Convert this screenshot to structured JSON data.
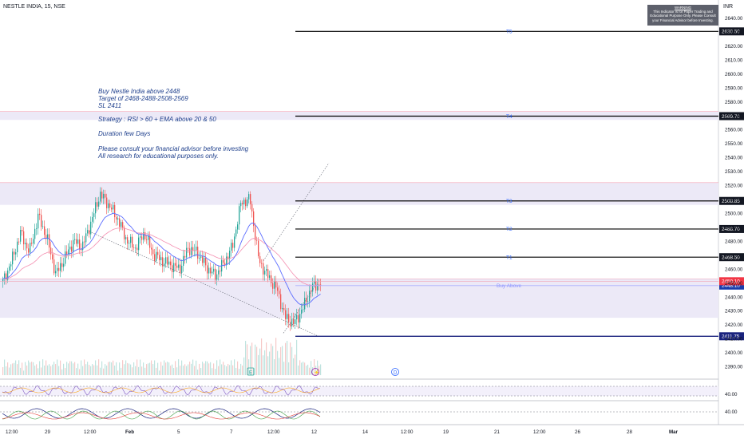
{
  "header": {
    "symbol": "NESTLE INDIA, 15, NSE",
    "currency": "INR"
  },
  "warning": {
    "title": "WARNING",
    "lines": [
      "This Indicator is for Paper Trading and",
      "Educational Purpose Only. Please Consult",
      "your Financial Advisor before Investing."
    ]
  },
  "notes": {
    "line1": "Buy Nestle India above 2448",
    "line2": "Target of 2468-2488-2508-2569",
    "line3": "SL 2411",
    "strategy": "Strategy : RSI > 60 + EMA above 20 & 50",
    "duration": "Duration few Days",
    "consult": "Please consult your financial advisor before investing",
    "research": "All research for educational purposes only."
  },
  "colors": {
    "candle_up": "#26a69a",
    "candle_down": "#ef5350",
    "ema_fast": "#5b6cff",
    "ema_slow": "#f48fb1",
    "zone": "#ece9f7",
    "sl_line": "#1a237e",
    "target_line": "#000000"
  },
  "chart_data": {
    "type": "candlestick",
    "symbol": "NESTLE INDIA",
    "interval": "15",
    "exchange": "NSE",
    "ylim": [
      2385,
      2645
    ],
    "y_ticks": [
      2390,
      2400,
      2410,
      2420,
      2430,
      2440,
      2450,
      2460,
      2470,
      2480,
      2490,
      2500,
      2510,
      2520,
      2530,
      2540,
      2550,
      2560,
      2570,
      2580,
      2590,
      2600,
      2610,
      2620,
      2630,
      2640
    ],
    "x_ticks": [
      "12:00",
      "29",
      "12:00",
      "Feb",
      "5",
      "7",
      "12:00",
      "12",
      "14",
      "12:00",
      "19",
      "21",
      "12:00",
      "26",
      "28",
      "Mar"
    ],
    "close_path": [
      2451,
      2466,
      2486,
      2472,
      2498,
      2482,
      2456,
      2468,
      2480,
      2476,
      2494,
      2514,
      2506,
      2496,
      2481,
      2475,
      2486,
      2471,
      2466,
      2463,
      2460,
      2475,
      2472,
      2462,
      2455,
      2464,
      2476,
      2508,
      2510,
      2466,
      2455,
      2446,
      2425,
      2421,
      2432,
      2447,
      2450
    ],
    "levels": [
      {
        "label": "T5",
        "value": 2630.5,
        "value_label": "2630.50",
        "kind": "target"
      },
      {
        "label": "T4",
        "value": 2569.7,
        "value_label": "2569.70",
        "kind": "target"
      },
      {
        "label": "T3",
        "value": 2508.85,
        "value_label": "2508.85",
        "kind": "target"
      },
      {
        "label": "T2",
        "value": 2488.7,
        "value_label": "2488.70",
        "kind": "target"
      },
      {
        "label": "T1",
        "value": 2468.5,
        "value_label": "2468.50",
        "kind": "target"
      },
      {
        "label": "Buy Above",
        "value": 2448.1,
        "value_label": "2448.10",
        "kind": "entry"
      },
      {
        "label": "",
        "value": 2411.75,
        "value_label": "2411.75",
        "kind": "stop"
      }
    ],
    "last_price": {
      "value": 2450.1,
      "value_label": "2450.10"
    },
    "zones": [
      [
        2425,
        2453
      ],
      [
        2506,
        2522
      ],
      [
        2567,
        2573
      ]
    ],
    "events": [
      {
        "label": "E",
        "date": "7"
      },
      {
        "label": "⚡",
        "date": "12"
      },
      {
        "label": "D",
        "date": "14"
      }
    ],
    "indicators": [
      {
        "name": "RSI",
        "level_labels": [
          "40.00"
        ]
      },
      {
        "name": "ADX",
        "level_labels": [
          "40.00"
        ]
      }
    ]
  }
}
